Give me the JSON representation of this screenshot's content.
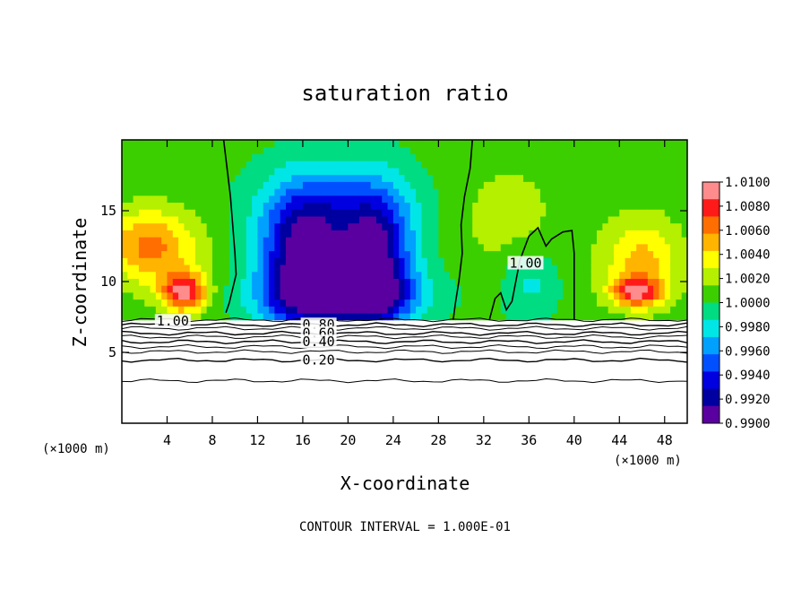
{
  "chart_data": {
    "type": "heatmap",
    "title": "saturation ratio",
    "xlabel": "X-coordinate",
    "ylabel": "Z-coordinate",
    "x_unit_label": "(×1000 m)",
    "y_unit_label": "(×1000 m)",
    "footer": "CONTOUR INTERVAL = 1.000E-01",
    "xlim": [
      0,
      50
    ],
    "ylim": [
      0,
      20
    ],
    "x_ticks": [
      "4",
      "8",
      "12",
      "16",
      "20",
      "24",
      "28",
      "32",
      "36",
      "40",
      "44",
      "48"
    ],
    "y_ticks": [
      "5",
      "10",
      "15"
    ],
    "colorbar": {
      "min": 0.99,
      "max": 1.01,
      "labels": [
        "1.0100",
        "1.0080",
        "1.0060",
        "1.0040",
        "1.0020",
        "1.0000",
        "0.9980",
        "0.9960",
        "0.9940",
        "0.9920",
        "0.9900"
      ],
      "colors": [
        "#ff8c8c",
        "#ff1a1a",
        "#ff6e00",
        "#ffb400",
        "#ffff00",
        "#b4f000",
        "#3ccf00",
        "#00dc82",
        "#00e6e6",
        "#00a0ff",
        "#0050ff",
        "#0000e0",
        "#0000a0",
        "#5a00a0"
      ]
    },
    "contour_labels": [
      {
        "text": "1.00",
        "x": 4.5,
        "z": 7.2
      },
      {
        "text": "0.80",
        "x": 17.4,
        "z": 6.95
      },
      {
        "text": "0.60",
        "x": 17.4,
        "z": 6.35
      },
      {
        "text": "0.40",
        "x": 17.4,
        "z": 5.75
      },
      {
        "text": "0.20",
        "x": 17.4,
        "z": 4.45
      },
      {
        "text": "1.00",
        "x": 35.7,
        "z": 11.3
      }
    ],
    "cloud_base_z": 7.3,
    "background_ratio": 1.0005,
    "features": [
      {
        "x": 2.5,
        "z": 12.5,
        "value": 1.0062,
        "sx": 4.2,
        "sz": 2.6
      },
      {
        "x": 5.5,
        "z": 9.3,
        "value": 1.009,
        "sx": 2.0,
        "sz": 1.4
      },
      {
        "x": 46,
        "z": 11.5,
        "value": 1.0048,
        "sx": 3.5,
        "sz": 3.0
      },
      {
        "x": 45.5,
        "z": 9.3,
        "value": 1.0075,
        "sx": 2.2,
        "sz": 1.0
      },
      {
        "x": 16,
        "z": 11.5,
        "value": 0.9915,
        "sx": 3.6,
        "sz": 4.5
      },
      {
        "x": 22.5,
        "z": 11.5,
        "value": 0.992,
        "sx": 3.0,
        "sz": 4.5
      },
      {
        "x": 19.5,
        "z": 9,
        "value": 0.9925,
        "sx": 6.5,
        "sz": 2.0
      },
      {
        "x": 19,
        "z": 15,
        "value": 0.9962,
        "sx": 6.5,
        "sz": 3.5
      },
      {
        "x": 34,
        "z": 14.5,
        "value": 1.0022,
        "sx": 4.5,
        "sz": 4.0
      },
      {
        "x": 36,
        "z": 10,
        "value": 0.998,
        "sx": 2.5,
        "sz": 2.5
      }
    ],
    "isolines": [
      {
        "label": "0.80",
        "z": 6.95
      },
      {
        "label": "0.60",
        "z": 6.35
      },
      {
        "label": "0.40",
        "z": 5.75
      },
      {
        "label": "0.20",
        "z": 4.45
      },
      {
        "label": "",
        "z": 7.3
      },
      {
        "label": "",
        "z": 6.7
      },
      {
        "label": "",
        "z": 6.1
      },
      {
        "label": "",
        "z": 5.4
      },
      {
        "label": "",
        "z": 5.05
      },
      {
        "label": "",
        "z": 3.0
      }
    ],
    "contour_1_00": [
      {
        "points": [
          [
            9.0,
            20
          ],
          [
            9.3,
            18
          ],
          [
            9.6,
            16
          ],
          [
            9.8,
            14
          ],
          [
            10.0,
            12
          ],
          [
            10.1,
            10.5
          ],
          [
            9.8,
            9.5
          ],
          [
            9.5,
            8.5
          ],
          [
            9.2,
            7.8
          ]
        ]
      },
      {
        "points": [
          [
            31.0,
            20
          ],
          [
            30.8,
            18
          ],
          [
            30.3,
            16
          ],
          [
            30.0,
            14
          ],
          [
            30.1,
            12
          ],
          [
            29.8,
            10
          ],
          [
            29.5,
            8.5
          ],
          [
            29.3,
            7.3
          ]
        ]
      },
      {
        "points": [
          [
            32.5,
            7.3
          ],
          [
            33,
            8.8
          ],
          [
            33.5,
            9.2
          ],
          [
            34.0,
            8.0
          ],
          [
            34.5,
            8.6
          ],
          [
            35.2,
            11.5
          ],
          [
            36.0,
            13.2
          ],
          [
            36.8,
            13.8
          ],
          [
            37.5,
            12.5
          ],
          [
            38.0,
            13.0
          ],
          [
            39.0,
            13.5
          ],
          [
            39.8,
            13.6
          ],
          [
            40,
            12.0
          ],
          [
            40,
            10.5
          ],
          [
            40.0,
            9.2
          ],
          [
            40.0,
            8.0
          ],
          [
            40.0,
            7.3
          ]
        ]
      }
    ]
  }
}
